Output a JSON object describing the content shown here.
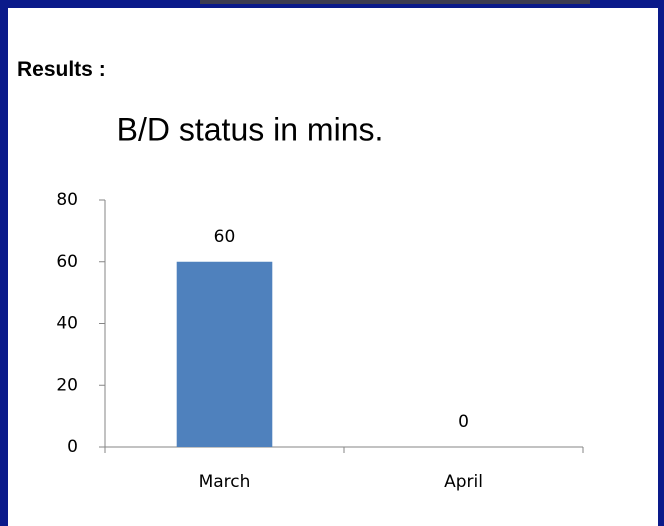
{
  "heading": "Results :",
  "chart_data": {
    "type": "bar",
    "title": "B/D status in mins.",
    "categories": [
      "March",
      "April"
    ],
    "values": [
      60,
      0
    ],
    "color": "#4f81bd",
    "ylim": [
      0,
      80
    ],
    "yticks": [
      0,
      20,
      40,
      60,
      80
    ],
    "grid": false,
    "data_labels": true
  }
}
